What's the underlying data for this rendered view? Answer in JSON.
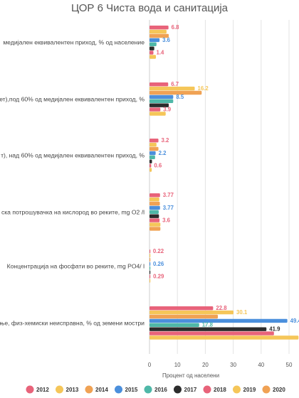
{
  "chart_data": {
    "type": "bar",
    "orientation": "horizontal",
    "title": "ЦОР 6 Чиста вода и санитација",
    "xlabel": "Процент од населени",
    "xlim": [
      0,
      60
    ],
    "xticks": [
      0,
      10,
      20,
      30,
      40,
      50,
      60
    ],
    "grid": true,
    "legend_position": "bottom",
    "categories": [
      "медијален еквивалентен приход,   % од население",
      "ет),под 60% од медијален еквивалентен   приход, %",
      "т),  над    60% од медијален еквивалентен приход, %",
      "ска потрошувачка на   кислород во реките, mg O2 /l",
      "Концентрација на фосфати во   реките, mg PO4/ l",
      "ње,   физ-хемиски неисправна, % од земени мостри"
    ],
    "series": [
      {
        "name": "2012",
        "color": "#e8637a",
        "values": [
          6.8,
          6.7,
          3.2,
          3.77,
          0.22,
          22.8
        ]
      },
      {
        "name": "2013",
        "color": "#f5c659",
        "values": [
          6.1,
          16.2,
          2.5,
          3.5,
          0.15,
          30.1
        ]
      },
      {
        "name": "2014",
        "color": "#f0a254",
        "values": [
          6.9,
          18.7,
          3.2,
          3.7,
          0.12,
          24.5
        ]
      },
      {
        "name": "2015",
        "color": "#4b8fdc",
        "values": [
          3.6,
          8.5,
          2.2,
          3.77,
          0.26,
          49.4
        ]
      },
      {
        "name": "2016",
        "color": "#4fb8a8",
        "values": [
          2.5,
          8.5,
          2.0,
          3.3,
          0.14,
          17.8
        ]
      },
      {
        "name": "2017",
        "color": "#2c2c2c",
        "values": [
          1.7,
          6.9,
          0.9,
          3.4,
          0.15,
          41.9
        ]
      },
      {
        "name": "2018",
        "color": "#e8637a",
        "values": [
          1.4,
          3.9,
          0.6,
          3.6,
          0.29,
          44.6
        ]
      },
      {
        "name": "2019",
        "color": "#f5c659",
        "values": [
          2.3,
          5.8,
          0.8,
          3.9,
          0.17,
          53.4
        ]
      },
      {
        "name": "2020",
        "color": "#f0a254",
        "values": [
          null,
          null,
          null,
          3.9,
          null,
          null
        ]
      }
    ],
    "data_labels": [
      [
        {
          "series": 0,
          "text": "6.8"
        },
        {
          "series": 3,
          "text": "3.6"
        },
        {
          "series": 6,
          "text": "1.4"
        }
      ],
      [
        {
          "series": 0,
          "text": "6.7"
        },
        {
          "series": 1,
          "text": "16.2"
        },
        {
          "series": 3,
          "text": "8.5"
        },
        {
          "series": 6,
          "text": "3.9"
        }
      ],
      [
        {
          "series": 0,
          "text": "3.2"
        },
        {
          "series": 3,
          "text": "2.2"
        },
        {
          "series": 6,
          "text": "0.6"
        }
      ],
      [
        {
          "series": 0,
          "text": "3.77"
        },
        {
          "series": 3,
          "text": "3.77"
        },
        {
          "series": 6,
          "text": "3.6"
        }
      ],
      [
        {
          "series": 0,
          "text": "0.22"
        },
        {
          "series": 3,
          "text": "0.26"
        },
        {
          "series": 6,
          "text": "0.29"
        }
      ],
      [
        {
          "series": 0,
          "text": "22.8"
        },
        {
          "series": 1,
          "text": "30.1"
        },
        {
          "series": 3,
          "text": "49.4"
        },
        {
          "series": 4,
          "text": "17.8"
        },
        {
          "series": 5,
          "text": "41.9"
        },
        {
          "series": 7,
          "text": "53.4"
        }
      ]
    ]
  }
}
